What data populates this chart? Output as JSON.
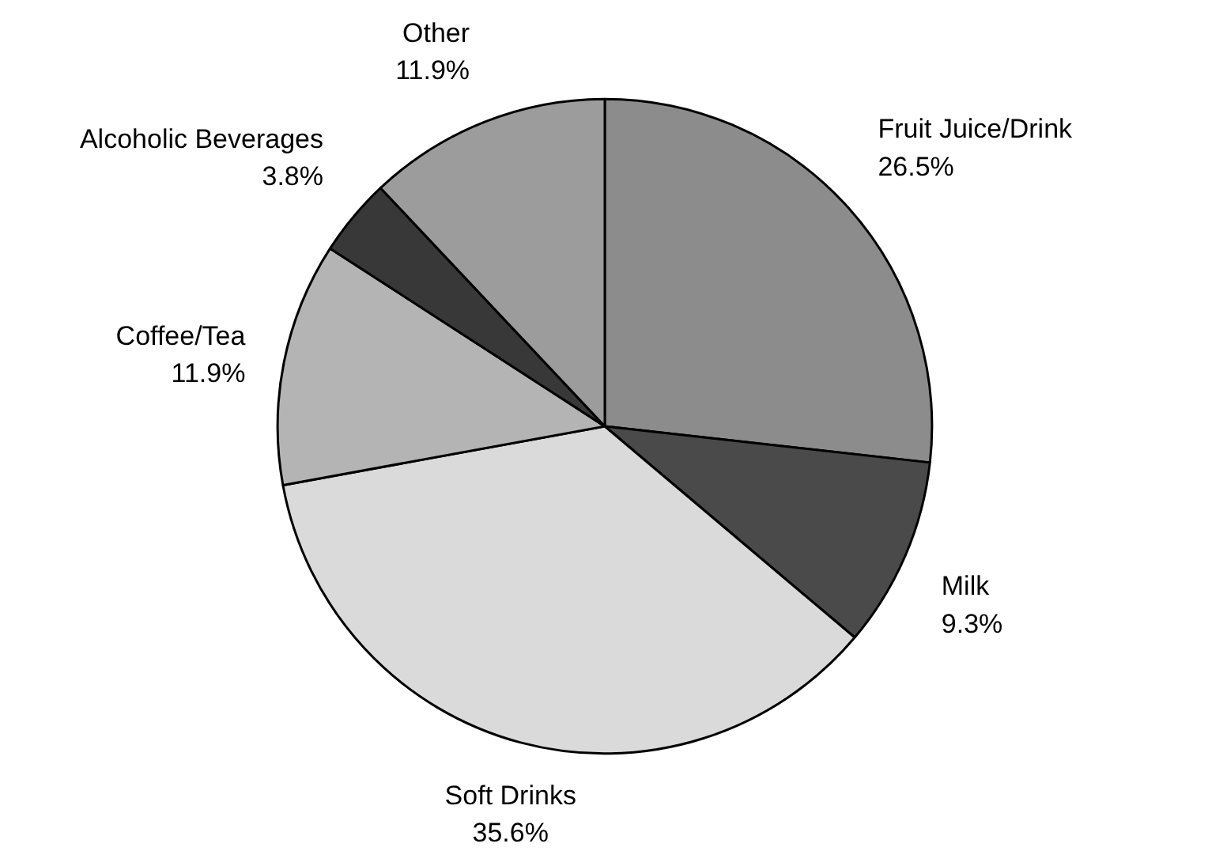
{
  "chart_data": {
    "type": "pie",
    "categories": [
      "Fruit Juice/Drink",
      "Milk",
      "Soft Drinks",
      "Coffee/Tea",
      "Alcoholic Beverages",
      "Other"
    ],
    "values": [
      26.5,
      9.3,
      35.6,
      11.9,
      3.8,
      11.9
    ],
    "colors": [
      "#8c8c8c",
      "#4a4a4a",
      "#dadada",
      "#b4b4b4",
      "#383838",
      "#9c9c9c"
    ],
    "value_labels": [
      "26.5%",
      "9.3%",
      "35.6%",
      "11.9%",
      "3.8%",
      "11.9%"
    ]
  }
}
